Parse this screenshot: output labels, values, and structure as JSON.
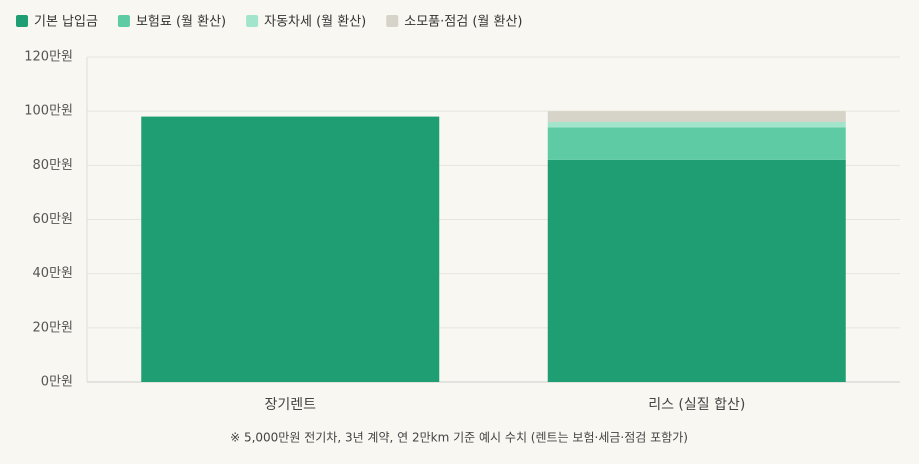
{
  "chart_data": {
    "type": "stacked_bar",
    "categories": [
      "장기렌트",
      "리스 (실질 합산)"
    ],
    "series": [
      {
        "name": "기본 납입금",
        "color": "#1f9e74",
        "values": [
          98,
          82
        ]
      },
      {
        "name": "보험료 (월 환산)",
        "color": "#5ecba5",
        "values": [
          0,
          12
        ]
      },
      {
        "name": "자동차세 (월 환산)",
        "color": "#a3e4cc",
        "values": [
          0,
          2
        ]
      },
      {
        "name": "소모품·점검 (월 환산)",
        "color": "#d6d3c8",
        "values": [
          0,
          4
        ]
      }
    ],
    "ylim": [
      0,
      120
    ],
    "yticks": [
      {
        "value": 0,
        "label": "0만원"
      },
      {
        "value": 20,
        "label": "20만원"
      },
      {
        "value": 40,
        "label": "40만원"
      },
      {
        "value": 60,
        "label": "60만원"
      },
      {
        "value": 80,
        "label": "80만원"
      },
      {
        "value": 100,
        "label": "100만원"
      },
      {
        "value": 120,
        "label": "120만원"
      }
    ],
    "grid": true,
    "legend": "top-left",
    "footnote": "※ 5,000만원 전기차, 3년 계약, 연 2만km 기준 예시 수치 (렌트는 보험·세금·점검 포함가)"
  }
}
